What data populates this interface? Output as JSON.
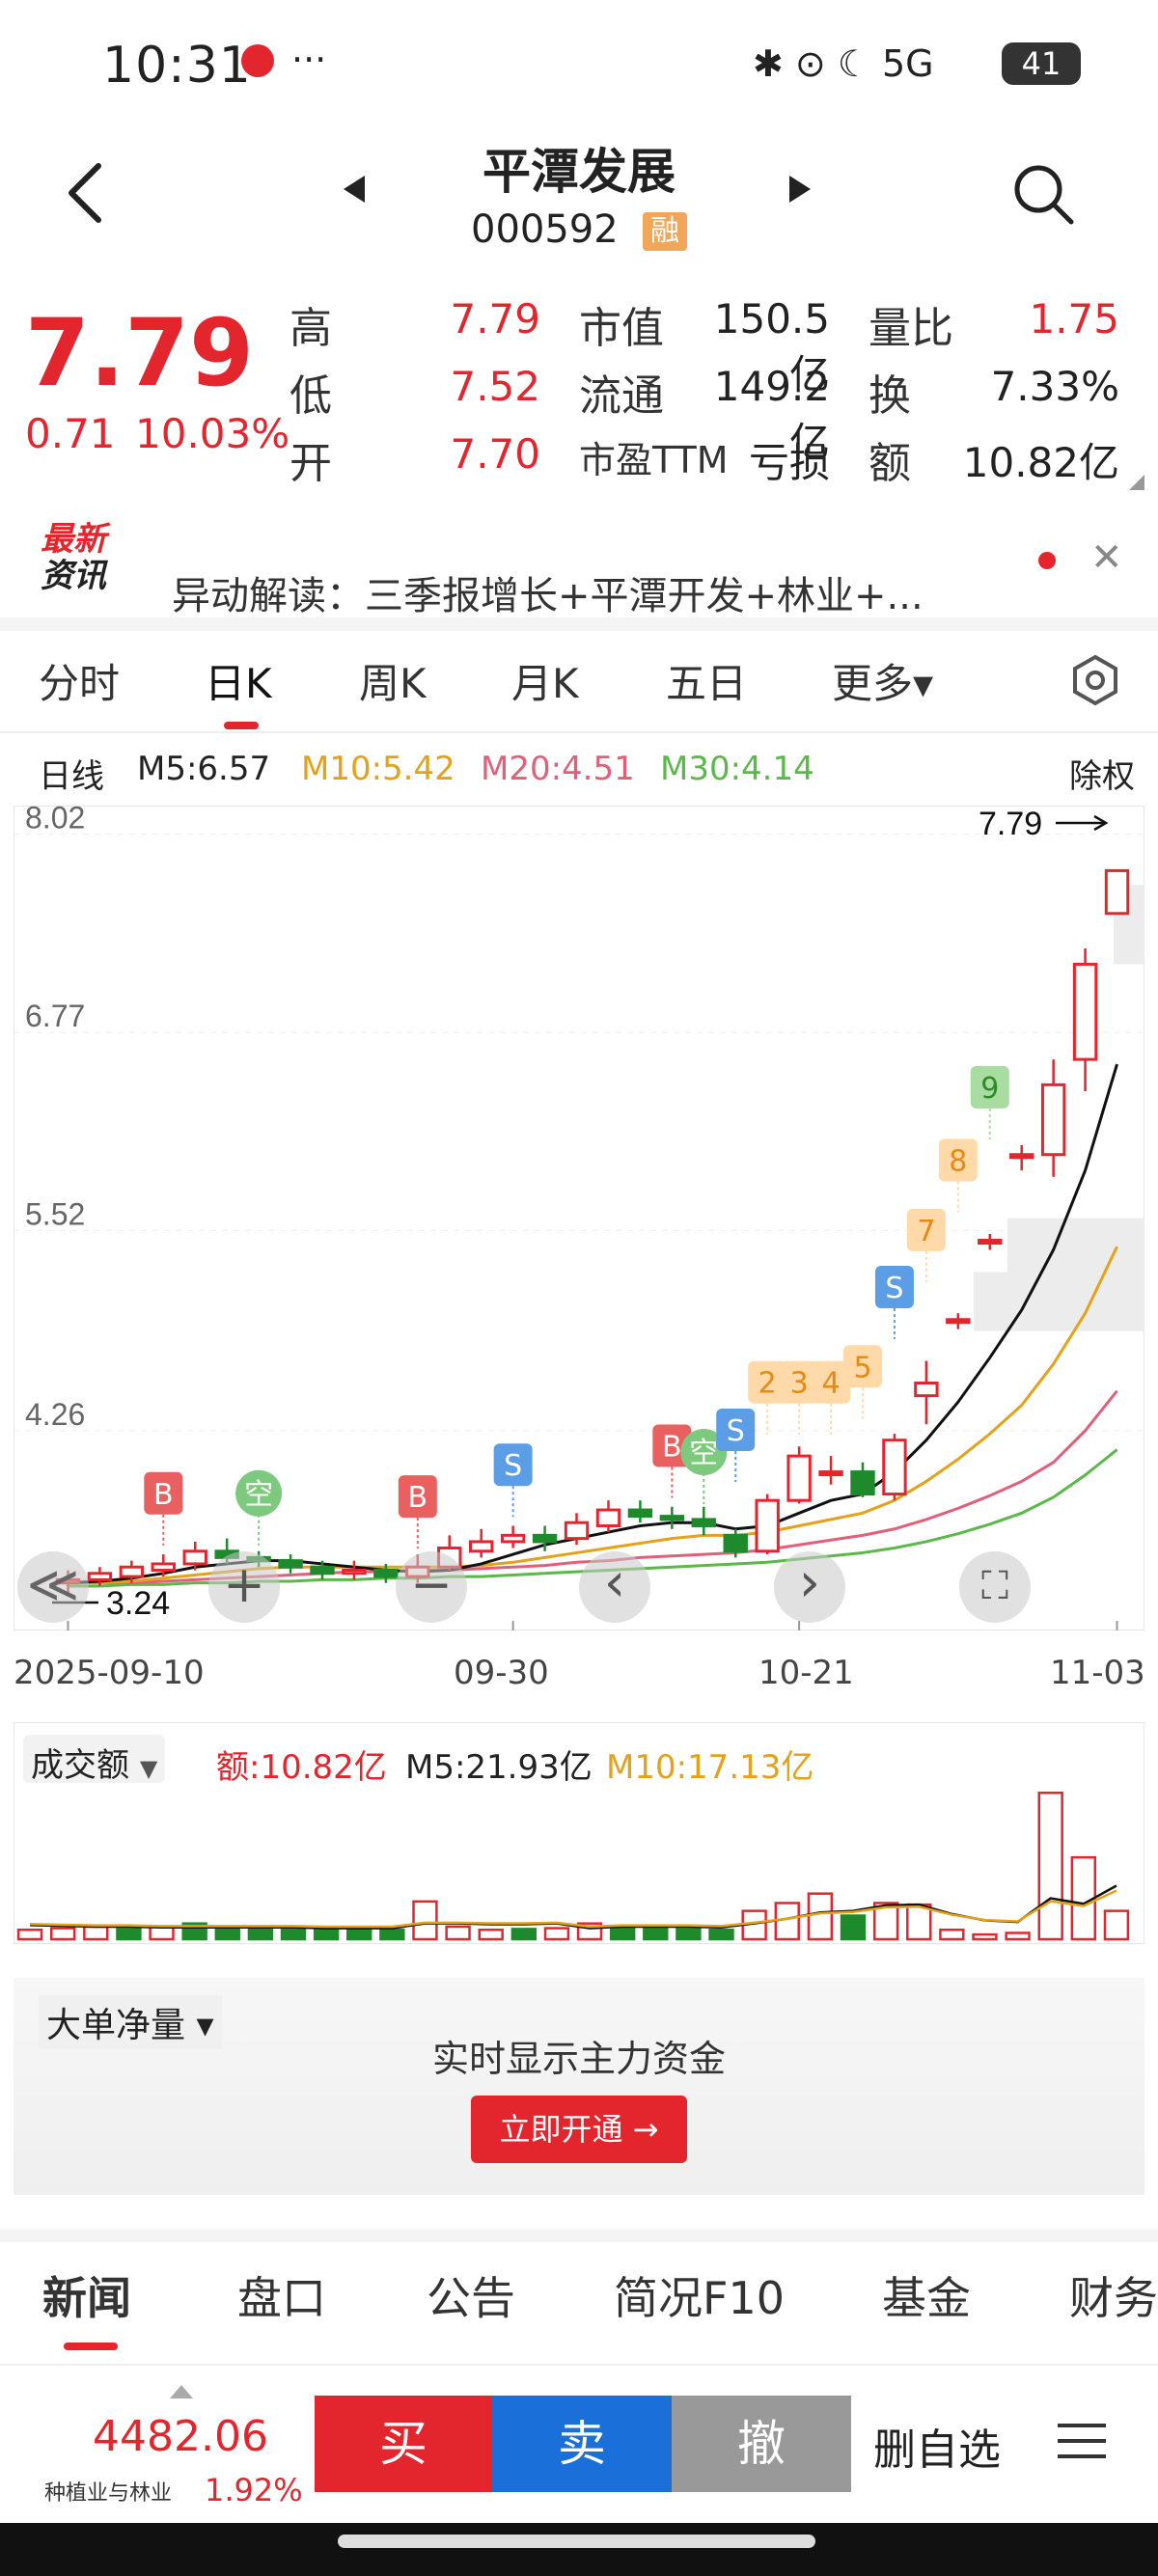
{
  "status_bar": {
    "time": "10:31",
    "more": "···",
    "icons": "✱ ⊙ ☾ 5G",
    "battery": "41"
  },
  "header": {
    "stock_name": "平潭发展",
    "stock_code": "000592",
    "badge": "融"
  },
  "quote": {
    "price": "7.79",
    "change": "0.71",
    "change_pct": "10.03%",
    "rows": [
      {
        "l1": "高",
        "v1": "7.79",
        "l2": "市值",
        "v2": "150.5亿",
        "l3": "量比",
        "v3": "1.75"
      },
      {
        "l1": "低",
        "v1": "7.52",
        "l2": "流通",
        "v2": "149.2亿",
        "l3": "换",
        "v3": "7.33%"
      },
      {
        "l1": "开",
        "v1": "7.70",
        "l2": "市盈TTM",
        "v2": "亏损",
        "l3": "额",
        "v3": "10.82亿"
      }
    ]
  },
  "news": {
    "logo_line1": "最新",
    "logo_line2": "资讯",
    "text": "异动解读：三季报增长+平潭开发+林业+..."
  },
  "tabs": [
    "分时",
    "日K",
    "周K",
    "月K",
    "五日",
    "更多▾"
  ],
  "active_tab": "日K",
  "ma": {
    "label": "日线",
    "m5": "M5:6.57",
    "m10": "M10:5.42",
    "m20": "M20:4.51",
    "m30": "M30:4.14",
    "exright": "除权"
  },
  "colors": {
    "up": "#e3262e",
    "down": "#1f8a2c",
    "ma5": "#111111",
    "ma10": "#e3a21a",
    "ma20": "#e0607a",
    "ma30": "#5cb84a",
    "buy": "#e3262e",
    "sell": "#1b6fd8",
    "cancel": "#999999"
  },
  "chart_data": {
    "type": "candlestick",
    "y_ticks": [
      "8.02",
      "6.77",
      "5.52",
      "4.26"
    ],
    "ylim": [
      3.0,
      8.2
    ],
    "x_labels": [
      "2025-09-10",
      "09-30",
      "10-21",
      "11-03"
    ],
    "last_price_label": "7.79",
    "low_label": "3.24",
    "candles": [
      {
        "o": 3.3,
        "c": 3.32,
        "h": 3.38,
        "l": 3.24
      },
      {
        "o": 3.32,
        "c": 3.36,
        "h": 3.4,
        "l": 3.28
      },
      {
        "o": 3.34,
        "c": 3.4,
        "h": 3.44,
        "l": 3.3
      },
      {
        "o": 3.38,
        "c": 3.42,
        "h": 3.48,
        "l": 3.34
      },
      {
        "o": 3.42,
        "c": 3.5,
        "h": 3.56,
        "l": 3.38
      },
      {
        "o": 3.5,
        "c": 3.46,
        "h": 3.58,
        "l": 3.42
      },
      {
        "o": 3.46,
        "c": 3.44,
        "h": 3.5,
        "l": 3.4
      },
      {
        "o": 3.44,
        "c": 3.4,
        "h": 3.48,
        "l": 3.36
      },
      {
        "o": 3.4,
        "c": 3.36,
        "h": 3.44,
        "l": 3.32
      },
      {
        "o": 3.36,
        "c": 3.38,
        "h": 3.44,
        "l": 3.32
      },
      {
        "o": 3.38,
        "c": 3.34,
        "h": 3.42,
        "l": 3.3
      },
      {
        "o": 3.34,
        "c": 3.4,
        "h": 3.48,
        "l": 3.3
      },
      {
        "o": 3.4,
        "c": 3.52,
        "h": 3.6,
        "l": 3.38
      },
      {
        "o": 3.5,
        "c": 3.56,
        "h": 3.64,
        "l": 3.46
      },
      {
        "o": 3.56,
        "c": 3.6,
        "h": 3.66,
        "l": 3.52
      },
      {
        "o": 3.6,
        "c": 3.56,
        "h": 3.66,
        "l": 3.5
      },
      {
        "o": 3.58,
        "c": 3.68,
        "h": 3.74,
        "l": 3.54
      },
      {
        "o": 3.66,
        "c": 3.76,
        "h": 3.82,
        "l": 3.62
      },
      {
        "o": 3.76,
        "c": 3.72,
        "h": 3.82,
        "l": 3.68
      },
      {
        "o": 3.72,
        "c": 3.7,
        "h": 3.78,
        "l": 3.64
      },
      {
        "o": 3.7,
        "c": 3.66,
        "h": 3.78,
        "l": 3.6
      },
      {
        "o": 3.6,
        "c": 3.5,
        "h": 3.64,
        "l": 3.46
      },
      {
        "o": 3.5,
        "c": 3.82,
        "h": 3.86,
        "l": 3.48
      },
      {
        "o": 3.82,
        "c": 4.1,
        "h": 4.16,
        "l": 3.8
      },
      {
        "o": 4.0,
        "c": 4.0,
        "h": 4.1,
        "l": 3.92
      },
      {
        "o": 4.0,
        "c": 3.86,
        "h": 4.06,
        "l": 3.84
      },
      {
        "o": 3.86,
        "c": 4.2,
        "h": 4.24,
        "l": 3.82
      },
      {
        "o": 4.48,
        "c": 4.56,
        "h": 4.7,
        "l": 4.3
      },
      {
        "o": 4.96,
        "c": 4.96,
        "h": 5.0,
        "l": 4.9
      },
      {
        "o": 5.46,
        "c": 5.46,
        "h": 5.5,
        "l": 5.4
      },
      {
        "o": 6.0,
        "c": 6.0,
        "h": 6.06,
        "l": 5.9
      },
      {
        "o": 6.0,
        "c": 6.44,
        "h": 6.6,
        "l": 5.86
      },
      {
        "o": 6.6,
        "c": 7.2,
        "h": 7.3,
        "l": 6.4
      },
      {
        "o": 7.52,
        "c": 7.79,
        "h": 7.79,
        "l": 7.52
      }
    ],
    "ma5": [
      3.3,
      3.31,
      3.33,
      3.36,
      3.4,
      3.42,
      3.44,
      3.44,
      3.42,
      3.4,
      3.38,
      3.37,
      3.38,
      3.42,
      3.48,
      3.54,
      3.58,
      3.62,
      3.66,
      3.68,
      3.68,
      3.64,
      3.66,
      3.74,
      3.82,
      3.86,
      4.0,
      4.2,
      4.44,
      4.72,
      5.02,
      5.4,
      5.9,
      6.57
    ],
    "ma10": [
      3.3,
      3.3,
      3.31,
      3.33,
      3.35,
      3.37,
      3.39,
      3.4,
      3.4,
      3.4,
      3.4,
      3.4,
      3.4,
      3.41,
      3.43,
      3.46,
      3.49,
      3.52,
      3.55,
      3.58,
      3.6,
      3.6,
      3.62,
      3.66,
      3.7,
      3.74,
      3.82,
      3.94,
      4.08,
      4.24,
      4.42,
      4.68,
      5.0,
      5.42
    ],
    "ma20": [
      3.3,
      3.3,
      3.3,
      3.31,
      3.32,
      3.33,
      3.34,
      3.35,
      3.36,
      3.37,
      3.37,
      3.38,
      3.38,
      3.39,
      3.4,
      3.41,
      3.43,
      3.44,
      3.46,
      3.47,
      3.48,
      3.49,
      3.51,
      3.54,
      3.57,
      3.6,
      3.64,
      3.7,
      3.77,
      3.85,
      3.94,
      4.06,
      4.26,
      4.51
    ],
    "ma30": [
      3.28,
      3.28,
      3.29,
      3.29,
      3.3,
      3.3,
      3.31,
      3.31,
      3.32,
      3.32,
      3.33,
      3.33,
      3.34,
      3.34,
      3.35,
      3.36,
      3.37,
      3.38,
      3.39,
      3.4,
      3.41,
      3.42,
      3.43,
      3.45,
      3.47,
      3.49,
      3.52,
      3.56,
      3.61,
      3.67,
      3.74,
      3.84,
      3.98,
      4.14
    ],
    "markers": [
      {
        "i": 3,
        "label": "B",
        "kind": "buy-b",
        "val": 3.5
      },
      {
        "i": 6,
        "label": "空",
        "kind": "kong",
        "val": 3.5
      },
      {
        "i": 11,
        "label": "B",
        "kind": "buy-b",
        "val": 3.48
      },
      {
        "i": 14,
        "label": "S",
        "kind": "sell-s",
        "val": 3.68
      },
      {
        "i": 19,
        "label": "B",
        "kind": "buy-b",
        "val": 3.8
      },
      {
        "i": 20,
        "label": "空",
        "kind": "kong",
        "val": 3.76
      },
      {
        "i": 21,
        "label": "S",
        "kind": "sell-s",
        "val": 3.9
      },
      {
        "i": 22,
        "label": "2",
        "kind": "num",
        "val": 4.2
      },
      {
        "i": 23,
        "label": "3",
        "kind": "num",
        "val": 4.2
      },
      {
        "i": 24,
        "label": "4",
        "kind": "num",
        "val": 4.2
      },
      {
        "i": 25,
        "label": "5",
        "kind": "num",
        "val": 4.3
      },
      {
        "i": 26,
        "label": "S",
        "kind": "sell-s",
        "val": 4.8
      },
      {
        "i": 27,
        "label": "7",
        "kind": "num",
        "val": 5.16
      },
      {
        "i": 28,
        "label": "8",
        "kind": "num",
        "val": 5.6
      },
      {
        "i": 29,
        "label": "9",
        "kind": "nine",
        "val": 6.06
      }
    ],
    "volume": {
      "legend_label": "成交额",
      "amount": "额:10.82亿",
      "m5": "M5:21.93亿",
      "m10": "M10:17.13亿",
      "values": [
        1.2,
        1.4,
        1.6,
        1.3,
        1.6,
        2.0,
        1.4,
        1.6,
        1.2,
        1.3,
        1.4,
        1.2,
        4.8,
        1.6,
        1.2,
        1.3,
        1.4,
        2.0,
        1.5,
        1.6,
        1.3,
        1.2,
        3.6,
        4.6,
        5.8,
        3.0,
        4.6,
        4.4,
        1.2,
        0.6,
        0.8,
        18.6,
        10.4,
        3.6
      ],
      "up": [
        1,
        1,
        1,
        0,
        1,
        0,
        0,
        0,
        0,
        0,
        0,
        0,
        1,
        1,
        1,
        0,
        1,
        1,
        0,
        0,
        0,
        0,
        1,
        1,
        1,
        0,
        1,
        1,
        1,
        1,
        1,
        1,
        1,
        1
      ],
      "ma5": [
        1.8,
        1.7,
        1.6,
        1.6,
        1.5,
        1.5,
        1.5,
        1.5,
        1.5,
        1.4,
        1.4,
        1.4,
        2.0,
        2.0,
        1.9,
        1.9,
        2.0,
        1.4,
        1.6,
        1.6,
        1.6,
        1.5,
        2.0,
        2.6,
        3.4,
        3.6,
        4.3,
        4.4,
        3.2,
        2.4,
        2.2,
        5.2,
        4.5,
        6.8
      ]
    }
  },
  "chart_controls": {
    "collapse": "≪",
    "zoom_in": "+",
    "zoom_out": "−",
    "prev": "‹",
    "next": "›",
    "fullscreen": "⛶"
  },
  "big_order": {
    "label": "大单净量 ▾",
    "title": "实时显示主力资金",
    "button": "立即开通 →"
  },
  "bottom_tabs": [
    "新闻",
    "盘口",
    "公告",
    "简况F10",
    "基金",
    "财务"
  ],
  "trade_bar": {
    "index_value": "4482.06",
    "index_name": "种植业与林业",
    "index_pct": "1.92%",
    "buy": "买",
    "sell": "卖",
    "cancel": "撤",
    "delete_watch": "删自选"
  }
}
